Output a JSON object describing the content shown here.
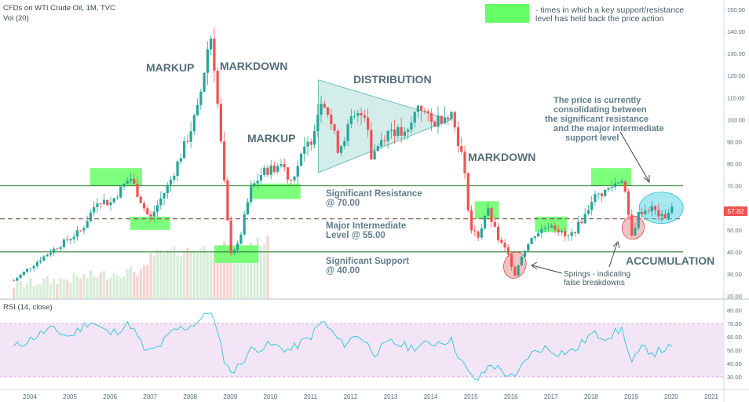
{
  "header": {
    "symbol": "CFDs on WTI Crude Oil, 1M, TVC",
    "volume_label": "Vol (20)",
    "rsi_label": "RSI (14, close)"
  },
  "legend": {
    "text_line1": "- times in which a key support/resistance",
    "text_line2": "level has held back the price action",
    "swatch_color": "#66ff66"
  },
  "annotations": {
    "markup1": "MARKUP",
    "markdown1": "MARKDOWN",
    "markup2": "MARKUP",
    "distribution": "DISTRIBUTION",
    "markdown2": "MARKDOWN",
    "accumulation": "ACCUMULATION",
    "consolidation": [
      "The price is currently",
      "consolidating between",
      "the significant resistance",
      "and the major intermediate",
      "support level"
    ],
    "resistance": [
      "Significant Resistance",
      "@ 70.00"
    ],
    "intermediate": [
      "Major Intermediate",
      "Level @ 55.00"
    ],
    "support": [
      "Significant Support",
      "@ 40.00"
    ],
    "springs": [
      "Springs - indicating",
      "false breakdowns"
    ]
  },
  "price_badge": "57.82",
  "colors": {
    "up": "#26a69a",
    "down": "#ef5350",
    "level": "#2e7d32",
    "highlight": "#66ff66",
    "triangle": "#80cbc4",
    "rsi_line": "#26c6da",
    "rsi_band": "#e1bee7",
    "text": "#546e7a"
  },
  "chart_data": {
    "type": "candlestick",
    "title": "CFDs on WTI Crude Oil, 1M, TVC",
    "x_ticks": [
      "2004",
      "2005",
      "2006",
      "2007",
      "2008",
      "2009",
      "2010",
      "2011",
      "2012",
      "2013",
      "2014",
      "2015",
      "2016",
      "2017",
      "2018",
      "2019",
      "2020",
      "2021"
    ],
    "y_ticks": [
      "20.00",
      "30.00",
      "40.00",
      "50.00",
      "60.00",
      "70.00",
      "80.00",
      "90.00",
      "100.00",
      "110.00",
      "120.00",
      "130.00",
      "140.00",
      "150.00"
    ],
    "ylim": [
      17,
      152
    ],
    "levels": [
      {
        "value": 70,
        "label": "Significant Resistance @ 70.00"
      },
      {
        "value": 55,
        "label": "Major Intermediate Level @ 55.00"
      },
      {
        "value": 40,
        "label": "Significant Support @ 40.00"
      }
    ],
    "price_anchors": [
      [
        2003.6,
        27
      ],
      [
        2004.0,
        33
      ],
      [
        2004.5,
        40
      ],
      [
        2004.9,
        45
      ],
      [
        2005.3,
        50
      ],
      [
        2005.7,
        64
      ],
      [
        2006.0,
        62
      ],
      [
        2006.5,
        74
      ],
      [
        2006.9,
        58
      ],
      [
        2007.0,
        55
      ],
      [
        2007.5,
        72
      ],
      [
        2007.9,
        90
      ],
      [
        2008.2,
        105
      ],
      [
        2008.5,
        140
      ],
      [
        2008.6,
        125
      ],
      [
        2008.9,
        60
      ],
      [
        2009.0,
        40
      ],
      [
        2009.2,
        43
      ],
      [
        2009.5,
        68
      ],
      [
        2009.8,
        76
      ],
      [
        2010.3,
        80
      ],
      [
        2010.5,
        72
      ],
      [
        2010.9,
        88
      ],
      [
        2011.0,
        90
      ],
      [
        2011.3,
        112
      ],
      [
        2011.7,
        86
      ],
      [
        2012.0,
        99
      ],
      [
        2012.4,
        104
      ],
      [
        2012.5,
        83
      ],
      [
        2012.8,
        92
      ],
      [
        2013.0,
        96
      ],
      [
        2013.4,
        92
      ],
      [
        2013.7,
        108
      ],
      [
        2014.0,
        98
      ],
      [
        2014.5,
        104
      ],
      [
        2014.8,
        82
      ],
      [
        2015.0,
        50
      ],
      [
        2015.2,
        47
      ],
      [
        2015.4,
        60
      ],
      [
        2015.7,
        45
      ],
      [
        2015.9,
        40
      ],
      [
        2016.1,
        30
      ],
      [
        2016.3,
        40
      ],
      [
        2016.6,
        48
      ],
      [
        2017.0,
        53
      ],
      [
        2017.4,
        46
      ],
      [
        2017.6,
        50
      ],
      [
        2017.9,
        58
      ],
      [
        2018.0,
        64
      ],
      [
        2018.4,
        68
      ],
      [
        2018.8,
        74
      ],
      [
        2018.9,
        60
      ],
      [
        2019.0,
        46
      ],
      [
        2019.2,
        58
      ],
      [
        2019.5,
        60
      ],
      [
        2019.8,
        55
      ],
      [
        2020.0,
        60
      ],
      [
        2020.05,
        57.8
      ]
    ],
    "rsi": {
      "ylim": [
        25,
        85
      ],
      "y_ticks": [
        "30.00",
        "40.00",
        "50.00",
        "60.00",
        "70.00",
        "80.00"
      ],
      "band": [
        30,
        70
      ],
      "anchors": [
        [
          2003.6,
          52
        ],
        [
          2004.0,
          58
        ],
        [
          2004.5,
          66
        ],
        [
          2005.0,
          60
        ],
        [
          2005.5,
          72
        ],
        [
          2006.0,
          62
        ],
        [
          2006.5,
          70
        ],
        [
          2006.9,
          48
        ],
        [
          2007.2,
          52
        ],
        [
          2007.6,
          65
        ],
        [
          2008.0,
          68
        ],
        [
          2008.4,
          76
        ],
        [
          2008.5,
          82
        ],
        [
          2008.7,
          60
        ],
        [
          2008.9,
          38
        ],
        [
          2009.1,
          34
        ],
        [
          2009.5,
          50
        ],
        [
          2010.0,
          54
        ],
        [
          2010.5,
          50
        ],
        [
          2011.0,
          60
        ],
        [
          2011.3,
          72
        ],
        [
          2011.8,
          54
        ],
        [
          2012.2,
          62
        ],
        [
          2012.6,
          48
        ],
        [
          2013.0,
          56
        ],
        [
          2013.5,
          52
        ],
        [
          2014.0,
          55
        ],
        [
          2014.5,
          58
        ],
        [
          2014.8,
          40
        ],
        [
          2015.0,
          30
        ],
        [
          2015.2,
          28
        ],
        [
          2015.5,
          40
        ],
        [
          2015.9,
          32
        ],
        [
          2016.1,
          28
        ],
        [
          2016.4,
          45
        ],
        [
          2016.8,
          52
        ],
        [
          2017.2,
          48
        ],
        [
          2017.6,
          50
        ],
        [
          2018.0,
          62
        ],
        [
          2018.4,
          60
        ],
        [
          2018.8,
          66
        ],
        [
          2018.95,
          45
        ],
        [
          2019.0,
          40
        ],
        [
          2019.3,
          52
        ],
        [
          2019.6,
          48
        ],
        [
          2019.9,
          52
        ],
        [
          2020.05,
          50
        ]
      ]
    }
  }
}
